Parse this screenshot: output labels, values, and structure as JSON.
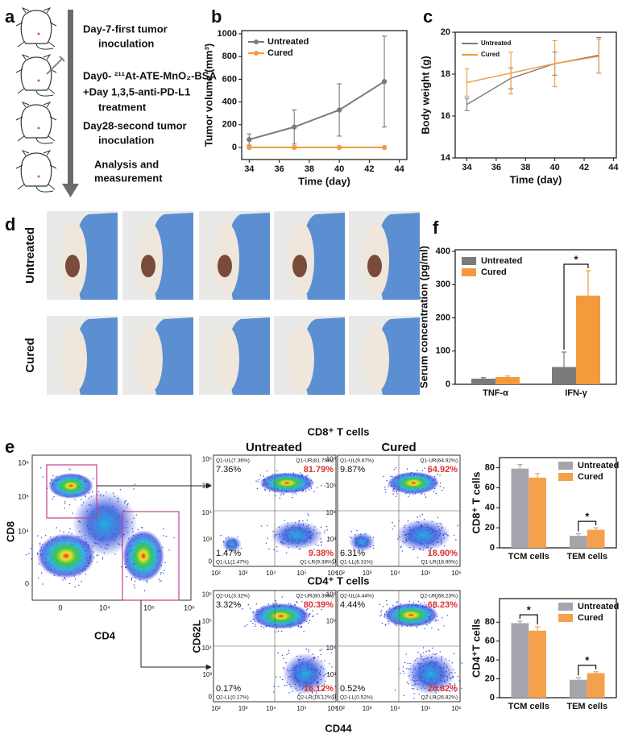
{
  "panel_labels": [
    "a",
    "b",
    "c",
    "d",
    "e",
    "f"
  ],
  "timeline": [
    "Day-7-first tumor",
    "inoculation",
    "Day0- ²¹¹At-ATE-MnO₂-BSA",
    "+Day 1,3,5-anti-PD-L1",
    "treatment",
    "Day28-second tumor",
    "inoculation",
    "Analysis and",
    "measurement"
  ],
  "photos": {
    "rows": [
      "Untreated",
      "Cured"
    ]
  },
  "flow": {
    "main": {
      "xlabel": "CD4",
      "ylabel": "CD8",
      "xticks": [
        "0",
        "10⁴",
        "10⁵",
        "10⁶"
      ],
      "yticks": [
        "10⁶",
        "10⁵",
        "10⁴",
        "0"
      ]
    },
    "titles": [
      "CD8⁺ T cells",
      "CD4⁺ T cells"
    ],
    "columns": [
      "Untreated",
      "Cured"
    ],
    "xlabel": "CD44",
    "ylabel": "CD62L",
    "xticks": [
      "10²",
      "10³",
      "10⁴",
      "10⁵",
      "10⁶"
    ],
    "yticks": [
      "10⁶",
      "10⁵",
      "10⁴",
      "10³",
      "0"
    ],
    "plots": [
      {
        "quadrants": [
          {
            "small": "Q1-UL(7.36%)",
            "big": "7.36%"
          },
          {
            "small": "Q1-UR(81.79%)",
            "big": "81.79%"
          },
          {
            "small": "Q1-LL(1.47%)",
            "big": "1.47%"
          },
          {
            "small": "Q1-LR(9.38%)",
            "big": "9.38%"
          }
        ]
      },
      {
        "quadrants": [
          {
            "small": "Q1-UL(9.87%)",
            "big": "9.87%"
          },
          {
            "small": "Q1-UR(64.92%)",
            "big": "64.92%"
          },
          {
            "small": "Q1-LL(6.31%)",
            "big": "6.31%"
          },
          {
            "small": "Q1-LR(18.90%)",
            "big": "18.90%"
          }
        ]
      },
      {
        "quadrants": [
          {
            "small": "Q2-UL(3.32%)",
            "big": "3.32%"
          },
          {
            "small": "Q2-UR(80.39%)",
            "big": "80.39%"
          },
          {
            "small": "Q2-LL(0.17%)",
            "big": "0.17%"
          },
          {
            "small": "Q2-LR(16.12%)",
            "big": "16.12%"
          }
        ]
      },
      {
        "quadrants": [
          {
            "small": "Q2-UL(4.44%)",
            "big": "4.44%"
          },
          {
            "small": "Q2-UR(68.23%)",
            "big": "68.23%"
          },
          {
            "small": "Q2-LL(0.52%)",
            "big": "0.52%"
          },
          {
            "small": "Q2-LR(26.82%)",
            "big": "26.82%"
          }
        ]
      }
    ]
  },
  "chart_data": [
    {
      "type": "line",
      "xlabel": "Time (day)",
      "ylabel": "Tumor volume (mm³)",
      "x": [
        34,
        37,
        40,
        43
      ],
      "xlim": [
        33.5,
        44.5
      ],
      "xticks": [
        34,
        36,
        38,
        40,
        42,
        44
      ],
      "ylim": [
        -106,
        1028
      ],
      "yticks": [
        0,
        200,
        400,
        600,
        800,
        1000
      ],
      "markers": true,
      "legend": "upper left",
      "series": [
        {
          "name": "Untreated",
          "color": "#7a7a7a",
          "values": [
            70,
            180,
            330,
            580
          ],
          "errors": [
            50,
            150,
            230,
            400
          ]
        },
        {
          "name": "Cured",
          "color": "#f39a3c",
          "values": [
            0,
            0,
            0,
            0
          ],
          "errors": [
            0,
            0,
            0,
            0
          ]
        }
      ]
    },
    {
      "type": "line",
      "xlabel": "Time (day)",
      "ylabel": "Body weight (g)",
      "x": [
        34,
        37,
        40,
        43
      ],
      "xlim": [
        33.2,
        44.2
      ],
      "xticks": [
        34,
        36,
        38,
        40,
        42,
        44
      ],
      "ylim": [
        14,
        20
      ],
      "yticks": [
        14,
        16,
        18,
        20
      ],
      "markers": false,
      "legend": "upper left",
      "series": [
        {
          "name": "Untreated",
          "color": "#7a7a7a",
          "values": [
            16.55,
            17.8,
            18.5,
            18.9
          ],
          "errors": [
            0.3,
            0.5,
            0.55,
            0.85
          ]
        },
        {
          "name": "Cured",
          "color": "#f39a3c",
          "values": [
            17.6,
            18.05,
            18.5,
            18.85
          ],
          "errors": [
            0.65,
            1.0,
            1.1,
            0.8
          ]
        }
      ]
    },
    {
      "type": "bar",
      "ylabel": "Serum concentration (pg/ml)",
      "categories": [
        "TNF-α",
        "IFN-γ"
      ],
      "ylim": [
        0,
        405
      ],
      "yticks": [
        0,
        100,
        200,
        300,
        400
      ],
      "legend": "upper left",
      "series": [
        {
          "name": "Untreated",
          "color": "#7a7a7a",
          "values": [
            17,
            52
          ],
          "errors": [
            3,
            45
          ]
        },
        {
          "name": "Cured",
          "color": "#f39a3c",
          "values": [
            22,
            267
          ],
          "errors": [
            3,
            75
          ]
        }
      ],
      "annotations": [
        {
          "text": "*",
          "category": 1
        }
      ]
    },
    {
      "type": "bar",
      "ylabel": "CD8⁺ T cells",
      "categories": [
        "TCM cells",
        "TEM cells"
      ],
      "ylim": [
        0,
        90
      ],
      "yticks": [
        0,
        20,
        40,
        60,
        80
      ],
      "legend": "upper right",
      "series": [
        {
          "name": "Untreated",
          "color": "#a5a5ad",
          "values": [
            79,
            12
          ],
          "errors": [
            4,
            2
          ]
        },
        {
          "name": "Cured",
          "color": "#f5a04a",
          "values": [
            70,
            18
          ],
          "errors": [
            4,
            2
          ]
        }
      ],
      "annotations": [
        {
          "text": "*",
          "category": 1
        }
      ]
    },
    {
      "type": "bar",
      "ylabel": "CD4⁺T cells",
      "categories": [
        "TCM cells",
        "TEM cells"
      ],
      "ylim": [
        0,
        105
      ],
      "yticks": [
        0,
        20,
        40,
        60,
        80
      ],
      "legend": "upper right",
      "series": [
        {
          "name": "Untreated",
          "color": "#a5a5ad",
          "values": [
            79,
            19
          ],
          "errors": [
            2,
            2
          ]
        },
        {
          "name": "Cured",
          "color": "#f5a04a",
          "values": [
            71,
            26
          ],
          "errors": [
            4,
            1.5
          ]
        }
      ],
      "annotations": [
        {
          "text": "*",
          "category": 0
        },
        {
          "text": "*",
          "category": 1
        }
      ]
    }
  ]
}
